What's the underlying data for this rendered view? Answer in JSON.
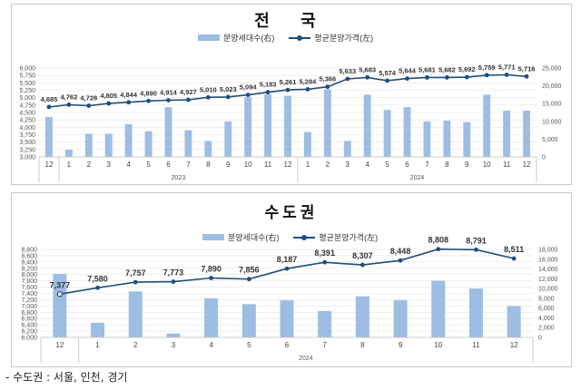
{
  "chart_data": [
    {
      "type": "bar+line",
      "title": "전 국",
      "legend": {
        "bar": "분양세대수(右)",
        "line": "평균분양가격(左)"
      },
      "categories": [
        "12",
        "1",
        "2",
        "3",
        "4",
        "5",
        "6",
        "7",
        "8",
        "9",
        "10",
        "11",
        "12",
        "1",
        "2",
        "3",
        "4",
        "5",
        "6",
        "7",
        "8",
        "9",
        "10",
        "11",
        "12"
      ],
      "years": [
        {
          "label": "2023",
          "from": 1,
          "to": 12
        },
        {
          "label": "2024",
          "from": 13,
          "to": 24
        }
      ],
      "left_axis": {
        "min": 3000,
        "max": 6000,
        "step": 250,
        "ticks": [
          "3,000",
          "3,250",
          "3,500",
          "3,750",
          "4,000",
          "4,250",
          "4,500",
          "4,750",
          "5,000",
          "5,250",
          "5,500",
          "5,750",
          "6,000"
        ]
      },
      "right_axis": {
        "min": 0,
        "max": 25000,
        "step": 5000,
        "ticks": [
          "0",
          "5,000",
          "10,000",
          "15,000",
          "20,000",
          "25,000"
        ]
      },
      "line_values": [
        4685,
        4762,
        4728,
        4805,
        4844,
        4890,
        4914,
        4927,
        5010,
        5023,
        5094,
        5183,
        5261,
        5284,
        5366,
        5633,
        5683,
        5574,
        5644,
        5681,
        5682,
        5692,
        5759,
        5771,
        5716
      ],
      "line_labels": [
        "4,685",
        "4,762",
        "4,728",
        "4,805",
        "4,844",
        "4,890",
        "4,914",
        "4,927",
        "5,010",
        "5,023",
        "5,094",
        "5,183",
        "5,261",
        "5,284",
        "5,366",
        "5,633",
        "5,683",
        "5,574",
        "5,644",
        "5,681",
        "5,682",
        "5,692",
        "5,759",
        "5,771",
        "5,716"
      ],
      "bar_values": [
        11200,
        2000,
        6500,
        6500,
        9200,
        7200,
        14000,
        7500,
        4500,
        10000,
        16800,
        17600,
        17200,
        7000,
        19000,
        4500,
        17500,
        13200,
        14000,
        10000,
        10200,
        9800,
        17500,
        13000,
        13000
      ]
    },
    {
      "type": "bar+line",
      "title": "수도권",
      "legend": {
        "bar": "분양세대수(右)",
        "line": "평균분양가격(左)"
      },
      "categories": [
        "12",
        "1",
        "2",
        "3",
        "4",
        "5",
        "6",
        "7",
        "8",
        "9",
        "10",
        "11",
        "12"
      ],
      "years": [
        {
          "label": "2024",
          "from": 1,
          "to": 12
        }
      ],
      "left_axis": {
        "min": 6000,
        "max": 8800,
        "step": 200,
        "ticks": [
          "6,000",
          "6,200",
          "6,400",
          "6,600",
          "6,800",
          "7,000",
          "7,200",
          "7,400",
          "7,600",
          "7,800",
          "8,000",
          "8,200",
          "8,400",
          "8,600",
          "8,800"
        ]
      },
      "right_axis": {
        "min": 0,
        "max": 18000,
        "step": 2000,
        "ticks": [
          "0",
          "2,000",
          "4,000",
          "6,000",
          "8,000",
          "10,000",
          "12,000",
          "14,000",
          "16,000",
          "18,000"
        ]
      },
      "line_values": [
        7377,
        7580,
        7757,
        7773,
        7890,
        7856,
        8187,
        8391,
        8307,
        8448,
        8808,
        8791,
        8511
      ],
      "line_labels": [
        "7,377",
        "7,580",
        "7,757",
        "7,773",
        "7,890",
        "7,856",
        "8,187",
        "8,391",
        "8,307",
        "8,448",
        "8,808",
        "8,791",
        "8,511"
      ],
      "bar_values": [
        13000,
        3000,
        9400,
        800,
        8000,
        6800,
        7600,
        5400,
        8400,
        7600,
        11600,
        10000,
        6400
      ]
    }
  ],
  "footnote": "- 수도권 : 서울, 인천, 경기"
}
